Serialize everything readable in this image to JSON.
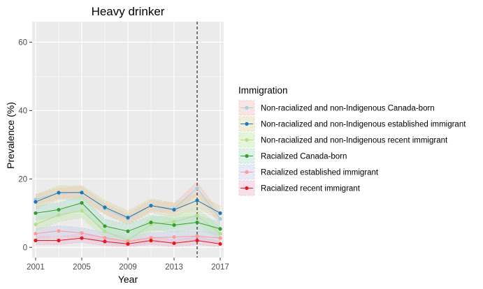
{
  "chart_data": {
    "type": "line",
    "title": "Heavy drinker",
    "xlabel": "Year",
    "ylabel": "Prevalence (%)",
    "x": [
      2001,
      2003,
      2005,
      2007,
      2009,
      2011,
      2013,
      2015,
      2017
    ],
    "x_ticks": [
      2001,
      2005,
      2009,
      2013,
      2017
    ],
    "y_ticks": [
      0,
      20,
      40,
      60
    ],
    "xlim": [
      2000.7,
      2017.3
    ],
    "ylim": [
      -3,
      66
    ],
    "grid": true,
    "vline_x": 2015,
    "legend_title": "Immigration",
    "legend_position": "right",
    "colors": {
      "panel_bg": "#ebebeb",
      "grid": "#ffffff",
      "vline": "#000000"
    },
    "series": [
      {
        "name": "Non-racialized and non-Indigenous Canada-born",
        "color": "#a6cee3",
        "fill": "#f2c4c4",
        "values": [
          14,
          15.8,
          16.2,
          11.3,
          8.3,
          12.2,
          11.3,
          17.3,
          8.3
        ],
        "lower": [
          12.5,
          14.3,
          14.7,
          9.8,
          6.8,
          10.7,
          9.8,
          15.5,
          6.8
        ],
        "upper": [
          15.5,
          17.3,
          17.7,
          12.8,
          9.8,
          13.7,
          12.8,
          19.1,
          9.8
        ]
      },
      {
        "name": "Non-racialized and non-Indigenous established immigrant",
        "color": "#1f78b4",
        "fill": "#d9d9b0",
        "values": [
          13.3,
          16,
          16,
          11.7,
          8.7,
          12.2,
          11,
          13.7,
          10
        ],
        "lower": [
          11.3,
          14,
          14,
          9.7,
          6.7,
          10.2,
          9,
          11.7,
          8
        ],
        "upper": [
          15.3,
          18,
          18,
          13.7,
          10.7,
          14.2,
          13,
          15.7,
          12
        ]
      },
      {
        "name": "Non-racialized and non-Indigenous recent immigrant",
        "color": "#b2df8a",
        "fill": "#c8e6b0",
        "values": [
          6.7,
          9.5,
          10.7,
          4.7,
          2,
          6.7,
          7.5,
          9.3,
          4
        ],
        "lower": [
          4.7,
          7.5,
          8.7,
          2.7,
          0.5,
          4.7,
          5.5,
          7.3,
          2
        ],
        "upper": [
          8.7,
          11.5,
          12.7,
          6.7,
          3.5,
          8.7,
          9.5,
          11.3,
          6
        ]
      },
      {
        "name": "Racialized Canada-born",
        "color": "#33a02c",
        "fill": "#b4e0ce",
        "values": [
          10,
          11,
          13,
          6.2,
          4.7,
          7.3,
          6.5,
          7.3,
          5.4
        ],
        "lower": [
          8,
          9,
          11,
          4.2,
          2.7,
          5.3,
          4.5,
          5.3,
          3.4
        ],
        "upper": [
          12,
          13,
          15,
          8.2,
          6.7,
          9.3,
          8.5,
          9.3,
          7.4
        ]
      },
      {
        "name": "Racialized established immigrant",
        "color": "#fb9a99",
        "fill": "#c9d0e8",
        "values": [
          4,
          4.8,
          4.2,
          2.8,
          1.7,
          2.8,
          3,
          3.3,
          2.7
        ],
        "lower": [
          2.5,
          3.3,
          2.7,
          1.3,
          0.5,
          1.3,
          1.5,
          1.8,
          1.2
        ],
        "upper": [
          5.5,
          6.3,
          5.7,
          4.3,
          2.9,
          4.3,
          4.5,
          4.8,
          4.2
        ]
      },
      {
        "name": "Racialized recent immigrant",
        "color": "#e31a1c",
        "fill": "#f0b8d4",
        "values": [
          2,
          2,
          2.7,
          1.7,
          1,
          2,
          1.2,
          2,
          1
        ],
        "lower": [
          0.8,
          0.8,
          1.5,
          0.5,
          0.2,
          0.8,
          0.2,
          0.8,
          0.2
        ],
        "upper": [
          3.2,
          3.2,
          3.9,
          2.9,
          1.8,
          3.2,
          2.2,
          3.2,
          1.8
        ]
      }
    ]
  }
}
